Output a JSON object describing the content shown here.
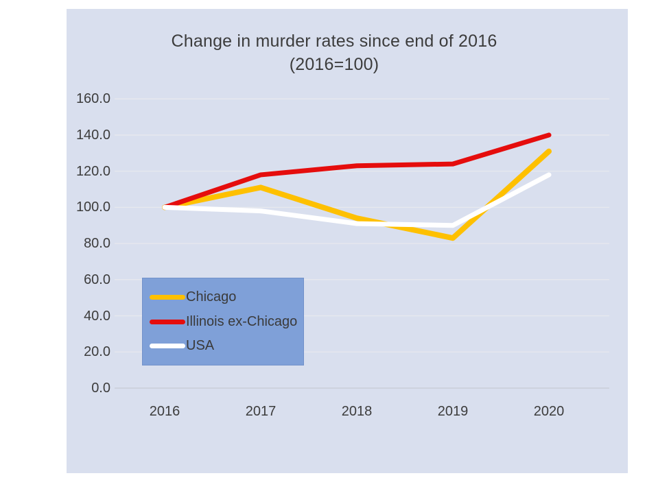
{
  "page": {
    "background": "#ffffff",
    "panel_background": "#d9dfee"
  },
  "title": {
    "line1": "Change in murder rates since end of 2016",
    "line2": "(2016=100)"
  },
  "colors": {
    "text": "#3c3c3c",
    "gridline": "#e7e9ee",
    "zero_line": "#c6cad3",
    "legend_background": "#7fa0d8",
    "legend_border": "#7291c9"
  },
  "chart_data": {
    "type": "line",
    "title": "Change in murder rates since end of 2016 (2016=100)",
    "categories": [
      "2016",
      "2017",
      "2018",
      "2019",
      "2020"
    ],
    "series": [
      {
        "name": "Chicago",
        "color": "#fec000",
        "values": [
          100,
          111,
          94,
          83,
          131
        ]
      },
      {
        "name": "Illinois ex-Chicago",
        "color": "#e50d0d",
        "values": [
          100,
          118,
          123,
          124,
          140
        ]
      },
      {
        "name": "USA",
        "color": "#ffffff",
        "values": [
          100,
          98,
          91,
          90,
          118
        ]
      }
    ],
    "ylim": [
      0,
      160
    ],
    "ytick_step": 20,
    "y_tick_labels": [
      "0.0",
      "20.0",
      "40.0",
      "60.0",
      "80.0",
      "100.0",
      "120.0",
      "140.0",
      "160.0"
    ],
    "grid": true,
    "legend_position": "inside-lower-left",
    "legend_entries": [
      "Chicago",
      "Illinois ex-Chicago",
      "USA"
    ]
  }
}
